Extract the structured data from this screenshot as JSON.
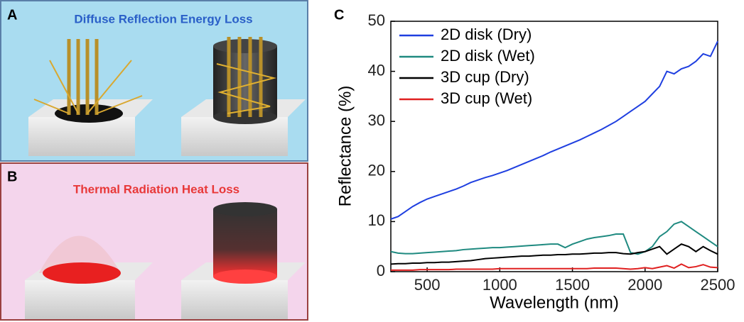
{
  "panels": [
    {
      "label": "A",
      "title": "Diffuse Reflection Energy Loss"
    },
    {
      "label": "B",
      "title": "Thermal Radiation Heat Loss"
    }
  ],
  "chart_data": {
    "type": "line",
    "label": "C",
    "xlabel": "Wavelength (nm)",
    "ylabel": "Reflectance (%)",
    "x": [
      250,
      300,
      350,
      400,
      450,
      500,
      550,
      600,
      650,
      700,
      750,
      800,
      850,
      900,
      950,
      1000,
      1050,
      1100,
      1150,
      1200,
      1250,
      1300,
      1350,
      1400,
      1450,
      1500,
      1550,
      1600,
      1650,
      1700,
      1750,
      1800,
      1850,
      1900,
      1950,
      2000,
      2050,
      2100,
      2150,
      2200,
      2250,
      2300,
      2350,
      2400,
      2450,
      2500
    ],
    "series": [
      {
        "name": "2D disk (Dry)",
        "color": "#1f3fe0",
        "values": [
          10.5,
          11,
          12,
          13,
          13.8,
          14.5,
          15,
          15.5,
          16,
          16.5,
          17.1,
          17.8,
          18.3,
          18.8,
          19.2,
          19.7,
          20.2,
          20.8,
          21.4,
          22,
          22.6,
          23.2,
          23.9,
          24.5,
          25.1,
          25.7,
          26.3,
          27,
          27.7,
          28.4,
          29.2,
          30,
          31,
          32,
          33,
          34,
          35.5,
          37,
          40,
          39.5,
          40.5,
          41,
          42,
          43.5,
          43,
          46
        ]
      },
      {
        "name": "2D disk (Wet)",
        "color": "#1f8a80",
        "values": [
          4,
          3.7,
          3.6,
          3.6,
          3.7,
          3.8,
          3.9,
          4,
          4.1,
          4.2,
          4.4,
          4.5,
          4.6,
          4.7,
          4.8,
          4.8,
          4.9,
          5,
          5.1,
          5.2,
          5.3,
          5.4,
          5.5,
          5.5,
          4.8,
          5.5,
          6,
          6.5,
          6.8,
          7,
          7.2,
          7.5,
          7.5,
          3.8,
          3.5,
          4,
          5,
          7,
          8,
          9.5,
          10,
          9,
          8,
          7,
          6,
          5
        ]
      },
      {
        "name": "3D cup (Dry)",
        "color": "#000000",
        "values": [
          1.5,
          1.6,
          1.6,
          1.7,
          1.7,
          1.8,
          1.8,
          1.9,
          1.9,
          2,
          2.1,
          2.2,
          2.4,
          2.6,
          2.7,
          2.8,
          2.9,
          3,
          3.1,
          3.1,
          3.2,
          3.3,
          3.3,
          3.4,
          3.4,
          3.5,
          3.5,
          3.6,
          3.7,
          3.7,
          3.8,
          3.8,
          3.6,
          3.5,
          3.8,
          4,
          4.5,
          5,
          3.5,
          4.5,
          5.5,
          5,
          4,
          5,
          4.2,
          3.5
        ]
      },
      {
        "name": "3D cup (Wet)",
        "color": "#e02020",
        "values": [
          0.3,
          0.3,
          0.3,
          0.3,
          0.4,
          0.4,
          0.4,
          0.4,
          0.4,
          0.5,
          0.5,
          0.5,
          0.5,
          0.5,
          0.5,
          0.6,
          0.6,
          0.6,
          0.6,
          0.6,
          0.6,
          0.6,
          0.6,
          0.6,
          0.6,
          0.6,
          0.6,
          0.6,
          0.7,
          0.7,
          0.7,
          0.7,
          0.6,
          0.5,
          0.6,
          0.8,
          0.6,
          0.9,
          1.2,
          0.7,
          1.5,
          0.8,
          1,
          1.4,
          0.9,
          0.8
        ]
      }
    ],
    "xlim": [
      250,
      2500
    ],
    "ylim": [
      0,
      50
    ],
    "xticks": [
      500,
      1000,
      1500,
      2000,
      2500
    ],
    "yticks": [
      0,
      10,
      20,
      30,
      40,
      50
    ],
    "legend": "upper left"
  }
}
